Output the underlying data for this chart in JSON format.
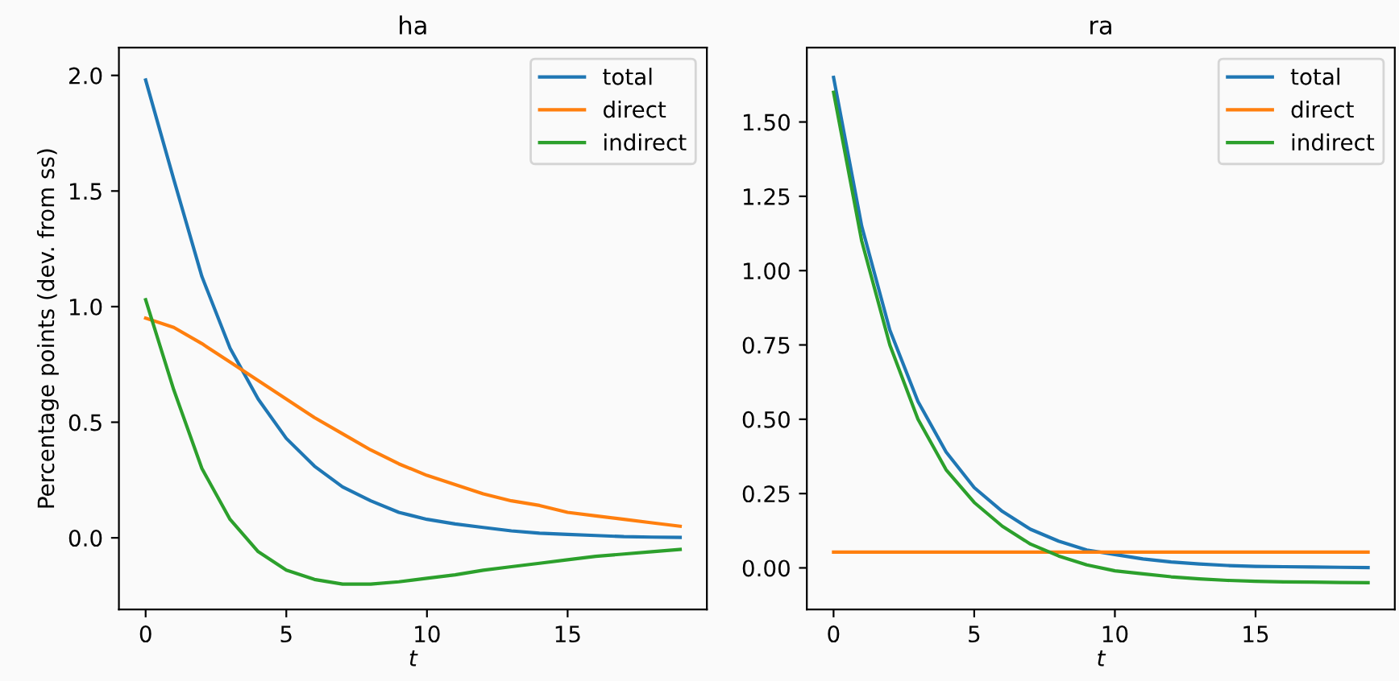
{
  "chart_data": [
    {
      "type": "line",
      "title": "ha",
      "xlabel": "t",
      "ylabel": "Percentage points (dev. from ss)",
      "x": [
        0,
        1,
        2,
        3,
        4,
        5,
        6,
        7,
        8,
        9,
        10,
        11,
        12,
        13,
        14,
        15,
        16,
        17,
        18,
        19
      ],
      "xlim": [
        -0.95,
        19.95
      ],
      "xticks": [
        0,
        5,
        10,
        15
      ],
      "ylim": [
        -0.31,
        2.12
      ],
      "yticks": [
        {
          "value": 0,
          "label": "0.0"
        },
        {
          "value": 0.5,
          "label": "0.5"
        },
        {
          "value": 1,
          "label": "1.0"
        },
        {
          "value": 1.5,
          "label": "1.5"
        },
        {
          "value": 2,
          "label": "2.0"
        }
      ],
      "legend": "top right",
      "grid": false,
      "series": [
        {
          "name": "total",
          "color": "#1f77b4",
          "values": [
            1.98,
            1.55,
            1.13,
            0.82,
            0.6,
            0.43,
            0.31,
            0.22,
            0.16,
            0.11,
            0.08,
            0.06,
            0.045,
            0.03,
            0.02,
            0.015,
            0.01,
            0.005,
            0.003,
            0.002
          ]
        },
        {
          "name": "direct",
          "color": "#ff7f0e",
          "values": [
            0.95,
            0.91,
            0.84,
            0.76,
            0.68,
            0.6,
            0.52,
            0.45,
            0.38,
            0.32,
            0.27,
            0.23,
            0.19,
            0.16,
            0.14,
            0.11,
            0.095,
            0.08,
            0.065,
            0.05
          ]
        },
        {
          "name": "indirect",
          "color": "#2ca02c",
          "values": [
            1.03,
            0.64,
            0.3,
            0.08,
            -0.06,
            -0.14,
            -0.18,
            -0.2,
            -0.2,
            -0.19,
            -0.175,
            -0.16,
            -0.14,
            -0.125,
            -0.11,
            -0.095,
            -0.08,
            -0.07,
            -0.06,
            -0.05
          ]
        }
      ]
    },
    {
      "type": "line",
      "title": "ra",
      "xlabel": "t",
      "x": [
        0,
        1,
        2,
        3,
        4,
        5,
        6,
        7,
        8,
        9,
        10,
        11,
        12,
        13,
        14,
        15,
        16,
        17,
        18,
        19
      ],
      "xlim": [
        -0.95,
        19.95
      ],
      "xticks": [
        0,
        5,
        10,
        15
      ],
      "ylim": [
        -0.14,
        1.75
      ],
      "yticks": [
        {
          "value": 0,
          "label": "0.00"
        },
        {
          "value": 0.25,
          "label": "0.25"
        },
        {
          "value": 0.5,
          "label": "0.50"
        },
        {
          "value": 0.75,
          "label": "0.75"
        },
        {
          "value": 1,
          "label": "1.00"
        },
        {
          "value": 1.25,
          "label": "1.25"
        },
        {
          "value": 1.5,
          "label": "1.50"
        }
      ],
      "legend": "top right",
      "grid": false,
      "series": [
        {
          "name": "total",
          "color": "#1f77b4",
          "values": [
            1.65,
            1.15,
            0.8,
            0.56,
            0.39,
            0.27,
            0.19,
            0.13,
            0.09,
            0.06,
            0.045,
            0.03,
            0.02,
            0.013,
            0.008,
            0.005,
            0.004,
            0.003,
            0.002,
            0.001
          ]
        },
        {
          "name": "direct",
          "color": "#ff7f0e",
          "values": [
            0.053,
            0.053,
            0.053,
            0.053,
            0.053,
            0.053,
            0.053,
            0.053,
            0.053,
            0.053,
            0.053,
            0.053,
            0.053,
            0.053,
            0.053,
            0.053,
            0.053,
            0.053,
            0.053,
            0.053
          ]
        },
        {
          "name": "indirect",
          "color": "#2ca02c",
          "values": [
            1.6,
            1.1,
            0.75,
            0.5,
            0.33,
            0.22,
            0.14,
            0.08,
            0.04,
            0.01,
            -0.01,
            -0.02,
            -0.03,
            -0.037,
            -0.042,
            -0.045,
            -0.047,
            -0.048,
            -0.049,
            -0.05
          ]
        }
      ]
    }
  ]
}
